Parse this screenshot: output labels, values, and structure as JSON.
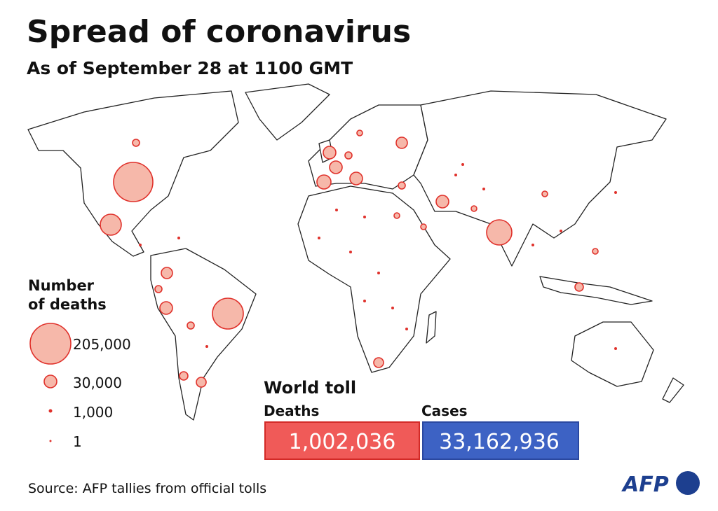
{
  "header": {
    "title": "Spread of coronavirus",
    "subtitle": "As of September 28 at 1100 GMT"
  },
  "legend": {
    "title": [
      "Number",
      "of deaths"
    ],
    "items": [
      "205,000",
      "30,000",
      "1,000",
      "1"
    ]
  },
  "toll": {
    "title": "World toll",
    "deaths": {
      "label": "Deaths",
      "value": "1,002,036"
    },
    "cases": {
      "label": "Cases",
      "value": "33,162,936"
    }
  },
  "source": "Source: AFP tallies from official tolls",
  "logo": "AFP"
}
